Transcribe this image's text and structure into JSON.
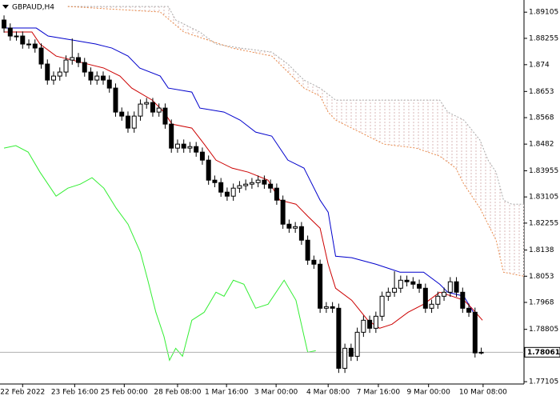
{
  "chart_data": {
    "type": "candlestick",
    "title": "GBPAUD,H4",
    "xlim": [
      -0.65,
      83.9
    ],
    "ylim": [
      1.7703,
      1.895
    ],
    "xticks": [
      {
        "value": 3,
        "label": "22 Feb 2022"
      },
      {
        "value": 11.4,
        "label": "23 Feb 16:00"
      },
      {
        "value": 19.4,
        "label": "25 Feb 00:00"
      },
      {
        "value": 28,
        "label": "28 Feb 08:00"
      },
      {
        "value": 35.9,
        "label": "1 Mar 16:00"
      },
      {
        "value": 43.9,
        "label": "3 Mar 00:00"
      },
      {
        "value": 52.3,
        "label": "4 Mar 08:00"
      },
      {
        "value": 60.4,
        "label": "7 Mar 16:00"
      },
      {
        "value": 68.5,
        "label": "9 Mar 00:00"
      },
      {
        "value": 77.3,
        "label": "10 Mar 08:00"
      }
    ],
    "yticks": [
      1.89105,
      1.88255,
      1.874,
      1.8653,
      1.8568,
      1.8482,
      1.83955,
      1.83105,
      1.82255,
      1.8138,
      1.8053,
      1.7968,
      1.78805,
      1.77105
    ],
    "current_price": 1.78061,
    "up_color": "#ffffff",
    "down_color": "#000000",
    "open": [
      1.8885,
      1.8859,
      1.8833,
      1.8833,
      1.8807,
      1.8807,
      1.8794,
      1.8742,
      1.869,
      1.8703,
      1.8716,
      1.8755,
      1.8763,
      1.8747,
      1.8716,
      1.869,
      1.8703,
      1.869,
      1.8664,
      1.8586,
      1.8573,
      1.8534,
      1.8573,
      1.8612,
      1.8617,
      1.8586,
      1.8599,
      1.8547,
      1.8469,
      1.8482,
      1.8469,
      1.8474,
      1.8456,
      1.843,
      1.8365,
      1.8357,
      1.8326,
      1.8313,
      1.8339,
      1.8347,
      1.8352,
      1.8357,
      1.8365,
      1.8352,
      1.8339,
      1.83,
      1.8222,
      1.8209,
      1.8214,
      1.817,
      1.8105,
      1.8092,
      1.7949,
      1.7954,
      1.7949,
      1.7754,
      1.7819,
      1.7793,
      1.7871,
      1.791,
      1.7884,
      1.7923,
      1.7988,
      1.8001,
      1.8014,
      1.804,
      1.8035,
      1.8027,
      1.8014,
      1.7949,
      1.7962,
      1.7988,
      1.8001,
      1.8035,
      1.8001,
      1.7949,
      1.7936,
      1.7804
    ],
    "high": [
      1.89,
      1.8874,
      1.8848,
      1.8848,
      1.8822,
      1.8822,
      1.8809,
      1.8757,
      1.8718,
      1.8731,
      1.877,
      1.8825,
      1.8778,
      1.8762,
      1.8731,
      1.8718,
      1.8718,
      1.8705,
      1.8679,
      1.8601,
      1.8588,
      1.8588,
      1.8627,
      1.8632,
      1.8632,
      1.8614,
      1.8614,
      1.8562,
      1.8497,
      1.8497,
      1.8489,
      1.8489,
      1.8471,
      1.8445,
      1.838,
      1.8372,
      1.8341,
      1.8354,
      1.8362,
      1.8367,
      1.8372,
      1.838,
      1.838,
      1.8367,
      1.8354,
      1.8315,
      1.8237,
      1.8229,
      1.8229,
      1.8185,
      1.812,
      1.8107,
      1.7969,
      1.7969,
      1.7964,
      1.7834,
      1.7834,
      1.7886,
      1.7925,
      1.7925,
      1.7938,
      1.8003,
      1.8016,
      1.8069,
      1.8055,
      1.8055,
      1.805,
      1.8042,
      1.8029,
      1.7977,
      1.8003,
      1.8016,
      1.805,
      1.805,
      1.8016,
      1.7964,
      1.7951,
      1.7821
    ],
    "low": [
      1.8844,
      1.8818,
      1.8818,
      1.8792,
      1.8792,
      1.8779,
      1.8727,
      1.8675,
      1.8675,
      1.8688,
      1.8701,
      1.874,
      1.8732,
      1.8701,
      1.8675,
      1.8675,
      1.8675,
      1.8649,
      1.8571,
      1.8558,
      1.8519,
      1.8519,
      1.8558,
      1.8597,
      1.8571,
      1.8571,
      1.8532,
      1.8454,
      1.8454,
      1.8454,
      1.8454,
      1.8441,
      1.8415,
      1.835,
      1.8342,
      1.8311,
      1.8298,
      1.8298,
      1.8324,
      1.8332,
      1.8337,
      1.8342,
      1.8337,
      1.8324,
      1.8285,
      1.8207,
      1.8194,
      1.8194,
      1.8155,
      1.809,
      1.8077,
      1.7934,
      1.7934,
      1.7934,
      1.7739,
      1.7739,
      1.7778,
      1.7778,
      1.7856,
      1.7869,
      1.7869,
      1.7908,
      1.7973,
      1.7986,
      1.7999,
      1.802,
      1.8012,
      1.7999,
      1.7934,
      1.7934,
      1.7947,
      1.7973,
      1.7986,
      1.7986,
      1.7934,
      1.7921,
      1.7789,
      1.7799
    ],
    "close": [
      1.8859,
      1.8833,
      1.8833,
      1.8807,
      1.8807,
      1.8794,
      1.8742,
      1.869,
      1.8703,
      1.8716,
      1.8755,
      1.8763,
      1.8747,
      1.8716,
      1.869,
      1.8703,
      1.869,
      1.8664,
      1.8586,
      1.8573,
      1.8534,
      1.8573,
      1.8612,
      1.8617,
      1.8586,
      1.8599,
      1.8547,
      1.8469,
      1.8482,
      1.8469,
      1.8474,
      1.8456,
      1.843,
      1.8365,
      1.8357,
      1.8326,
      1.8313,
      1.8339,
      1.8347,
      1.8352,
      1.8357,
      1.8365,
      1.8352,
      1.8339,
      1.83,
      1.8222,
      1.8209,
      1.8214,
      1.817,
      1.8105,
      1.8092,
      1.7949,
      1.7954,
      1.7949,
      1.7754,
      1.7819,
      1.7793,
      1.7871,
      1.791,
      1.7884,
      1.7923,
      1.7988,
      1.8001,
      1.8014,
      1.804,
      1.8035,
      1.8027,
      1.8014,
      1.7949,
      1.7962,
      1.7988,
      1.8001,
      1.8035,
      1.8001,
      1.7949,
      1.7936,
      1.7804,
      1.7806
    ],
    "lines": [
      {
        "color": "#a8a8a8",
        "style": "dotted",
        "x": [
          10.3,
          26.5,
          27.7,
          31.6,
          34.2,
          38.1,
          43.2,
          45.8,
          48.4,
          51,
          53.5,
          70.3,
          71.6,
          74.2,
          76.8,
          78.1,
          79.4,
          80.6,
          81.9,
          83.9
        ],
        "values": [
          1.8929,
          1.8929,
          1.8885,
          1.8846,
          1.8807,
          1.8794,
          1.8781,
          1.8742,
          1.869,
          1.8664,
          1.8625,
          1.8625,
          1.8586,
          1.856,
          1.8495,
          1.843,
          1.8391,
          1.83,
          1.8287,
          1.8287
        ]
      },
      {
        "color": "#e8894a",
        "style": "dotted",
        "x": [
          10.3,
          25.2,
          29,
          32.9,
          36.8,
          43.2,
          45.8,
          48.4,
          51,
          52.3,
          53.5,
          56.1,
          61.3,
          66.5,
          70.3,
          72.9,
          74.2,
          76.8,
          79.4,
          80.6,
          83.9
        ],
        "values": [
          1.8929,
          1.8911,
          1.8846,
          1.882,
          1.8794,
          1.8768,
          1.8716,
          1.8664,
          1.8638,
          1.8586,
          1.856,
          1.8534,
          1.8482,
          1.8469,
          1.8443,
          1.8404,
          1.8352,
          1.8274,
          1.817,
          1.8066,
          1.8053
        ]
      },
      {
        "color": "#33ee33",
        "style": "solid",
        "x": [
          0,
          1.9,
          3.9,
          5.8,
          8.4,
          10.3,
          12.3,
          14.2,
          16.1,
          18.1,
          20,
          22,
          23.2,
          24.5,
          25.8,
          26.7,
          27.7,
          28.8,
          30.3,
          32.3,
          34.2,
          35.5,
          37,
          38.7,
          40.6,
          42.6,
          45.2,
          47.1,
          49,
          50.3
        ],
        "values": [
          1.8469,
          1.8477,
          1.8456,
          1.8391,
          1.8313,
          1.8339,
          1.8352,
          1.8373,
          1.8339,
          1.8274,
          1.8222,
          1.8131,
          1.804,
          1.7936,
          1.7858,
          1.778,
          1.7819,
          1.7793,
          1.791,
          1.7936,
          1.8001,
          1.7988,
          1.804,
          1.8027,
          1.7949,
          1.7962,
          1.804,
          1.7975,
          1.7806,
          1.7811
        ]
      },
      {
        "color": "#0000cc",
        "style": "solid",
        "x": [
          0,
          5.2,
          7.1,
          11,
          14.8,
          17.4,
          20,
          21.9,
          25.2,
          26.5,
          30.3,
          31.6,
          35.5,
          38.1,
          40.6,
          43.2,
          45.8,
          48.4,
          51,
          52.3,
          53.5,
          56.1,
          60,
          63.9,
          67.7,
          70.3,
          71.6,
          74.2,
          76.1
        ],
        "values": [
          1.8859,
          1.8859,
          1.8833,
          1.882,
          1.8807,
          1.8794,
          1.8768,
          1.8729,
          1.8703,
          1.8664,
          1.8651,
          1.8599,
          1.8586,
          1.856,
          1.8521,
          1.8508,
          1.843,
          1.8404,
          1.83,
          1.8261,
          1.8118,
          1.8113,
          1.8092,
          1.8066,
          1.8066,
          1.8027,
          1.8001,
          1.7988,
          1.7923
        ]
      },
      {
        "color": "#cc0000",
        "style": "solid",
        "x": [
          0,
          4.5,
          5.8,
          8.4,
          11,
          13.5,
          16.1,
          18.7,
          20.6,
          23.9,
          25.8,
          27.1,
          30.3,
          32.3,
          34.2,
          36.8,
          39.4,
          42.6,
          44.5,
          47.1,
          49,
          51,
          52.3,
          53.5,
          56.1,
          58.7,
          60.6,
          62.6,
          65.2,
          67.7,
          70.3,
          72.3,
          74.2,
          75.5,
          77.2
        ],
        "values": [
          1.8846,
          1.8846,
          1.8807,
          1.8768,
          1.8755,
          1.8742,
          1.8729,
          1.8703,
          1.8664,
          1.8625,
          1.8586,
          1.8547,
          1.8534,
          1.8482,
          1.843,
          1.8404,
          1.8391,
          1.8365,
          1.83,
          1.8287,
          1.8248,
          1.8209,
          1.8092,
          1.8014,
          1.7975,
          1.791,
          1.7884,
          1.7897,
          1.7936,
          1.7962,
          1.8001,
          1.7988,
          1.7975,
          1.7949,
          1.791
        ]
      }
    ]
  }
}
